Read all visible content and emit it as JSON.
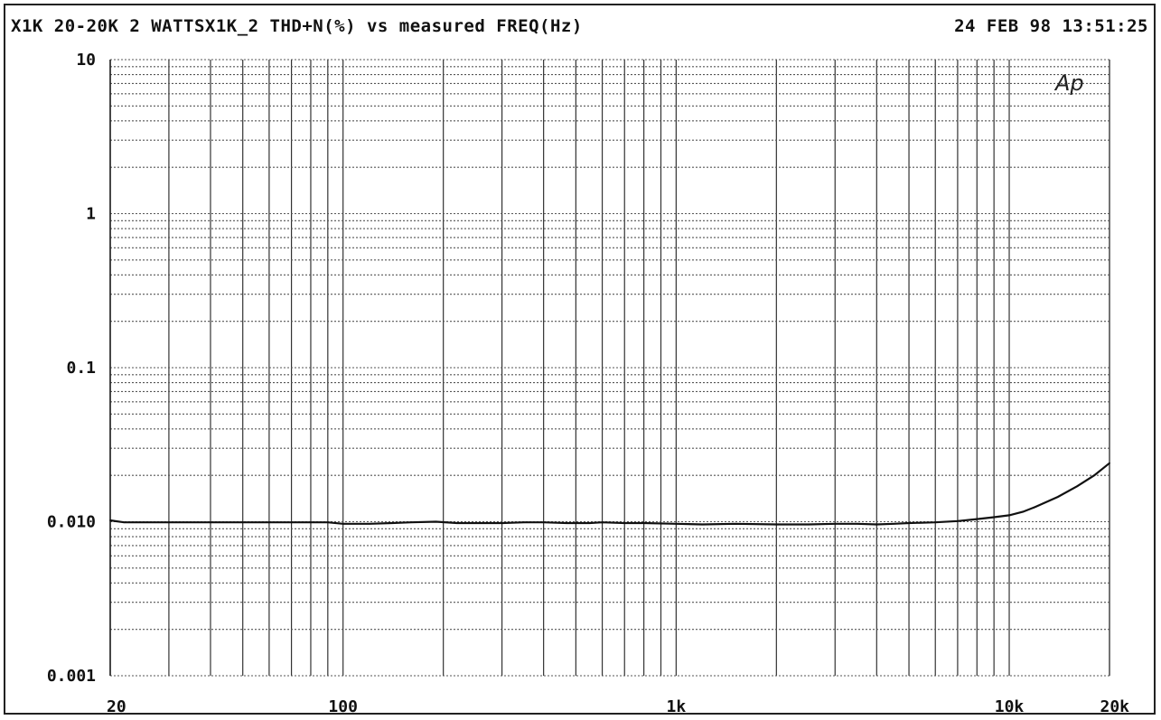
{
  "chart_data": {
    "type": "line",
    "title": "X1K 20-20K 2 WATTSX1K_2 THD+N(%) vs measured FREQ(Hz)",
    "timestamp": "24 FEB 98 13:51:25",
    "logo": "Ap",
    "xlabel": "",
    "ylabel": "",
    "x_scale": "log",
    "y_scale": "log",
    "xlim": [
      20,
      20000
    ],
    "ylim": [
      0.001,
      10
    ],
    "grid": true,
    "x_ticks": [
      {
        "value": 20,
        "label": "20"
      },
      {
        "value": 100,
        "label": "100"
      },
      {
        "value": 1000,
        "label": "1k"
      },
      {
        "value": 10000,
        "label": "10k"
      },
      {
        "value": 20000,
        "label": "20k"
      }
    ],
    "y_ticks": [
      {
        "value": 10,
        "label": "10"
      },
      {
        "value": 1,
        "label": "1"
      },
      {
        "value": 0.1,
        "label": "0.1"
      },
      {
        "value": 0.01,
        "label": "0.010"
      },
      {
        "value": 0.001,
        "label": "0.001"
      }
    ],
    "series": [
      {
        "color": "#111111",
        "x": [
          20,
          22,
          30,
          40,
          50,
          60,
          70,
          80,
          90,
          100,
          120,
          140,
          160,
          190,
          220,
          260,
          300,
          350,
          400,
          470,
          550,
          600,
          700,
          800,
          1000,
          1200,
          1500,
          2000,
          2500,
          3000,
          3500,
          4000,
          4500,
          5000,
          6000,
          7000,
          8000,
          9000,
          10000,
          11000,
          12000,
          14000,
          16000,
          18000,
          20000
        ],
        "y": [
          0.0102,
          0.0099,
          0.0099,
          0.0099,
          0.0099,
          0.0099,
          0.0099,
          0.0099,
          0.0099,
          0.0097,
          0.0097,
          0.0098,
          0.0099,
          0.01,
          0.0098,
          0.0098,
          0.0098,
          0.0099,
          0.0099,
          0.0098,
          0.0098,
          0.0099,
          0.0098,
          0.0098,
          0.0097,
          0.0096,
          0.0097,
          0.0096,
          0.0096,
          0.0097,
          0.0097,
          0.0096,
          0.0097,
          0.0098,
          0.0099,
          0.0101,
          0.0104,
          0.0107,
          0.011,
          0.0116,
          0.0125,
          0.0145,
          0.017,
          0.02,
          0.024
        ]
      }
    ]
  }
}
